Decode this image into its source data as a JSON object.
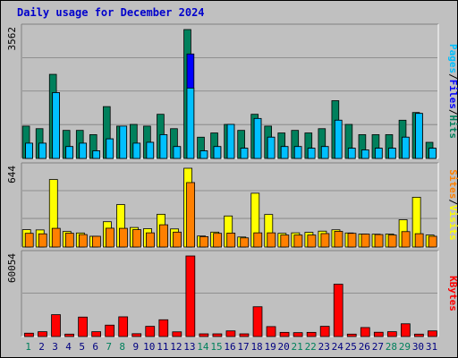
{
  "title": "Daily usage for December 2024",
  "colors": {
    "hits": "#00805c",
    "files": "#0000ff",
    "pages": "#00c0ff",
    "visits": "#ffff00",
    "sites": "#ff8000",
    "kbytes": "#ff0000",
    "weekday": "#000080",
    "weekend": "#00805c"
  },
  "chart_data": [
    {
      "type": "bar",
      "panel": "hits-files-pages",
      "ymax_label": "3562",
      "ylim": [
        0,
        3562
      ],
      "legend": [
        {
          "name": "Pages",
          "color": "#00c0ff"
        },
        {
          "name": "Files",
          "color": "#0000ff"
        },
        {
          "name": "Hits",
          "color": "#00805c"
        }
      ],
      "categories": [
        "1",
        "2",
        "3",
        "4",
        "5",
        "6",
        "7",
        "8",
        "9",
        "10",
        "11",
        "12",
        "13",
        "14",
        "15",
        "16",
        "17",
        "18",
        "19",
        "20",
        "21",
        "22",
        "23",
        "24",
        "25",
        "26",
        "27",
        "28",
        "29",
        "30",
        "31"
      ],
      "series": [
        {
          "name": "Hits",
          "values": [
            893,
            822,
            2324,
            775,
            775,
            657,
            1432,
            893,
            940,
            893,
            1220,
            822,
            3562,
            587,
            704,
            940,
            775,
            1220,
            893,
            704,
            775,
            704,
            822,
            1596,
            940,
            657,
            657,
            657,
            1056,
            1269,
            445
          ]
        },
        {
          "name": "Files",
          "values": [
            422,
            422,
            1818,
            328,
            422,
            210,
            540,
            893,
            422,
            445,
            657,
            328,
            2887,
            210,
            328,
            940,
            282,
            1104,
            587,
            328,
            328,
            282,
            328,
            1056,
            282,
            235,
            282,
            282,
            587,
            1244,
            282
          ]
        },
        {
          "name": "Pages",
          "values": [
            422,
            422,
            1818,
            328,
            422,
            210,
            540,
            893,
            422,
            445,
            657,
            328,
            1944,
            210,
            328,
            940,
            282,
            1104,
            587,
            328,
            328,
            282,
            328,
            1056,
            282,
            235,
            282,
            282,
            587,
            1244,
            282
          ]
        }
      ]
    },
    {
      "type": "bar",
      "panel": "visits-sites",
      "ymax_label": "644",
      "ylim": [
        0,
        644
      ],
      "legend": [
        {
          "name": "Sites",
          "color": "#ff8000"
        },
        {
          "name": "Visits",
          "color": "#ffff00"
        }
      ],
      "categories": [
        "1",
        "2",
        "3",
        "4",
        "5",
        "6",
        "7",
        "8",
        "9",
        "10",
        "11",
        "12",
        "13",
        "14",
        "15",
        "16",
        "17",
        "18",
        "19",
        "20",
        "21",
        "22",
        "23",
        "24",
        "25",
        "26",
        "27",
        "28",
        "29",
        "30",
        "31"
      ],
      "series": [
        {
          "name": "Visits",
          "values": [
            142,
            140,
            552,
            127,
            115,
            88,
            207,
            347,
            160,
            150,
            268,
            148,
            644,
            90,
            122,
            254,
            82,
            440,
            266,
            112,
            116,
            120,
            130,
            141,
            115,
            106,
            105,
            106,
            223,
            407,
            98
          ]
        },
        {
          "name": "Sites",
          "values": [
            112,
            108,
            153,
            113,
            102,
            88,
            154,
            153,
            142,
            116,
            182,
            122,
            527,
            85,
            112,
            114,
            75,
            116,
            116,
            98,
            98,
            98,
            110,
            128,
            112,
            106,
            102,
            98,
            126,
            109,
            88
          ]
        }
      ]
    },
    {
      "type": "bar",
      "panel": "kbytes",
      "ymax_label": "60054",
      "ylim": [
        0,
        60054
      ],
      "legend": [
        {
          "name": "KBytes",
          "color": "#ff0000"
        }
      ],
      "categories": [
        "1",
        "2",
        "3",
        "4",
        "5",
        "6",
        "7",
        "8",
        "9",
        "10",
        "11",
        "12",
        "13",
        "14",
        "15",
        "16",
        "17",
        "18",
        "19",
        "20",
        "21",
        "22",
        "23",
        "24",
        "25",
        "26",
        "27",
        "28",
        "29",
        "30",
        "31"
      ],
      "series": [
        {
          "name": "KBytes",
          "values": [
            2500,
            3600,
            16300,
            1800,
            14500,
            3600,
            8500,
            14700,
            2100,
            7600,
            12500,
            3500,
            60054,
            2000,
            2000,
            4200,
            2000,
            22200,
            7400,
            3100,
            2900,
            3100,
            7600,
            39000,
            1800,
            6700,
            3200,
            3600,
            9500,
            1800,
            4200
          ]
        }
      ]
    }
  ]
}
